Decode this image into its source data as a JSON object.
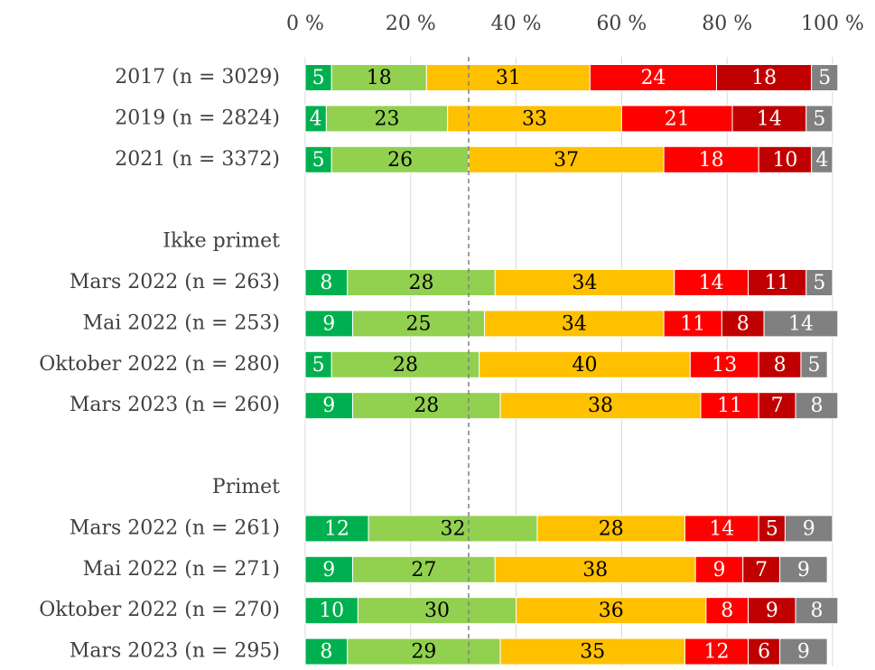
{
  "chart_data": {
    "type": "stacked_barh",
    "categories": [
      "2017 (n = 3029)",
      "2019 (n = 2824)",
      "2021 (n = 3372)",
      null,
      "Ikke primet",
      "Mars 2022 (n = 263)",
      "Mai 2022 (n = 253)",
      "Oktober 2022 (n = 280)",
      "Mars 2023 (n = 260)",
      null,
      "Primet",
      "Mars 2022 (n = 261)",
      "Mai 2022 (n = 271)",
      "Oktober 2022 (n = 270)",
      "Mars 2023 (n = 295)"
    ],
    "series": [
      {
        "color": "#00b050",
        "label_color": "#ffffff",
        "values": [
          5,
          4,
          5,
          null,
          null,
          8,
          9,
          5,
          9,
          null,
          null,
          12,
          9,
          10,
          8
        ]
      },
      {
        "color": "#92d050",
        "label_color": "#000000",
        "values": [
          18,
          23,
          26,
          null,
          null,
          28,
          25,
          28,
          28,
          null,
          null,
          32,
          27,
          30,
          29
        ]
      },
      {
        "color": "#ffc000",
        "label_color": "#000000",
        "values": [
          31,
          33,
          37,
          null,
          null,
          34,
          34,
          40,
          38,
          null,
          null,
          28,
          38,
          36,
          35
        ]
      },
      {
        "color": "#ff0000",
        "label_color": "#ffffff",
        "values": [
          24,
          21,
          18,
          null,
          null,
          14,
          11,
          13,
          11,
          null,
          null,
          14,
          9,
          8,
          12
        ]
      },
      {
        "color": "#c00000",
        "label_color": "#ffffff",
        "values": [
          18,
          14,
          10,
          null,
          null,
          11,
          8,
          8,
          7,
          null,
          null,
          5,
          7,
          9,
          6
        ]
      },
      {
        "color": "#808080",
        "label_color": "#ffffff",
        "values": [
          5,
          5,
          4,
          null,
          null,
          5,
          14,
          5,
          8,
          null,
          null,
          9,
          9,
          8,
          9
        ]
      }
    ],
    "xlim": [
      0,
      100
    ],
    "xticks": [
      {
        "value": 0,
        "label": "0 %"
      },
      {
        "value": 20,
        "label": "20 %"
      },
      {
        "value": 40,
        "label": "40 %"
      },
      {
        "value": 60,
        "label": "60 %"
      },
      {
        "value": 80,
        "label": "80 %"
      },
      {
        "value": 100,
        "label": "100 %"
      }
    ],
    "grid": true,
    "reference_line": 31
  }
}
